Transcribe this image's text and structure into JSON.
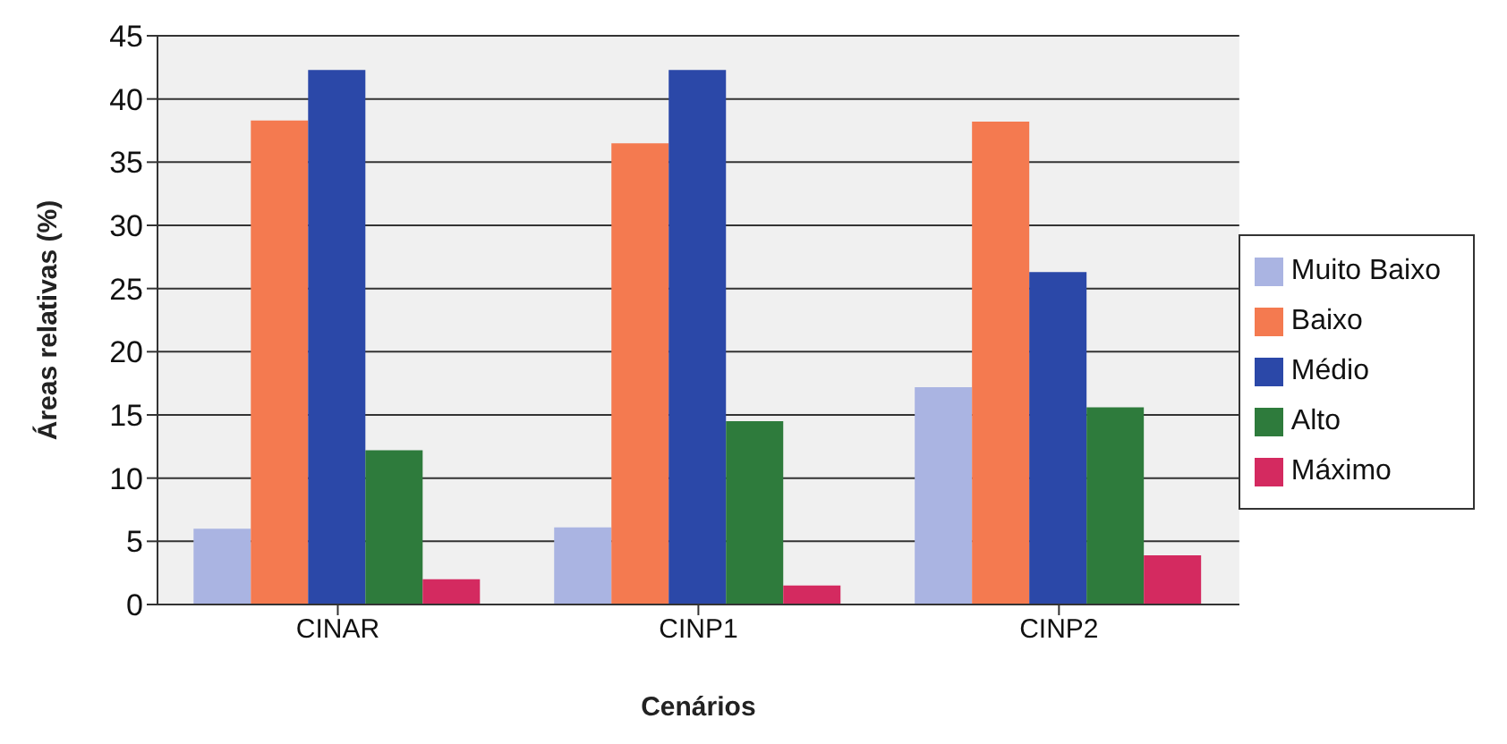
{
  "chart_data": {
    "type": "bar",
    "xlabel": "Cenários",
    "ylabel": "Áreas relativas (%)",
    "categories": [
      "CINAR",
      "CINP1",
      "CINP2"
    ],
    "series": [
      {
        "name": "Muito Baixo",
        "color": "#aab4e2",
        "values": [
          6.0,
          6.1,
          17.2
        ]
      },
      {
        "name": "Baixo",
        "color": "#f47a50",
        "values": [
          38.3,
          36.5,
          38.2
        ]
      },
      {
        "name": "Médio",
        "color": "#2b48a8",
        "values": [
          42.3,
          42.3,
          26.3
        ]
      },
      {
        "name": "Alto",
        "color": "#2e7b3c",
        "values": [
          12.2,
          14.5,
          15.6
        ]
      },
      {
        "name": "Máximo",
        "color": "#d42a60",
        "values": [
          2.0,
          1.5,
          3.9
        ]
      }
    ],
    "ylim": [
      0,
      45
    ],
    "yticks": [
      0,
      5,
      10,
      15,
      20,
      25,
      30,
      35,
      40,
      45
    ],
    "grid": "y",
    "legend": "right"
  }
}
